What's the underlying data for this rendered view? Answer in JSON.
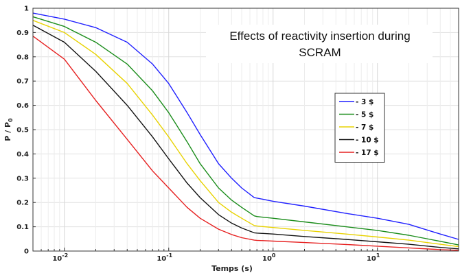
{
  "chart_data": {
    "type": "line",
    "title_lines": [
      "Effects of reactivity insertion during",
      "SCRAM"
    ],
    "xlabel": "Temps (s)",
    "ylabel": "P / P",
    "ylabel_subscript": "0",
    "x_scale": "log",
    "xlim": [
      0.005,
      60
    ],
    "ylim": [
      0,
      1
    ],
    "grid": true,
    "legend_position": "right-middle",
    "y_ticks": [
      0,
      0.1,
      0.2,
      0.3,
      0.4,
      0.5,
      0.6,
      0.7,
      0.8,
      0.9,
      1
    ],
    "y_tick_labels": [
      "0",
      "0.1",
      "0.2",
      "0.3",
      "0.4",
      "0.5",
      "0.6",
      "0.7",
      "0.8",
      "0.9",
      "1"
    ],
    "x_ticks": [
      0.01,
      0.1,
      1,
      10
    ],
    "x_tick_labels": [
      {
        "base": "10",
        "exp": "-2"
      },
      {
        "base": "10",
        "exp": "-1"
      },
      {
        "base": "10",
        "exp": "0"
      },
      {
        "base": "10",
        "exp": "1"
      }
    ],
    "series": [
      {
        "name": "- 3 $",
        "color": "#1f1fff",
        "x": [
          0.005,
          0.01,
          0.02,
          0.04,
          0.07,
          0.1,
          0.15,
          0.2,
          0.3,
          0.4,
          0.5,
          0.66,
          0.7,
          1,
          2,
          5,
          10,
          20,
          40,
          60
        ],
        "y": [
          0.98,
          0.955,
          0.92,
          0.86,
          0.77,
          0.69,
          0.57,
          0.48,
          0.36,
          0.3,
          0.26,
          0.22,
          0.218,
          0.205,
          0.185,
          0.155,
          0.135,
          0.11,
          0.07,
          0.048
        ]
      },
      {
        "name": "- 5 $",
        "color": "#1a8c1a",
        "x": [
          0.005,
          0.01,
          0.02,
          0.04,
          0.07,
          0.1,
          0.15,
          0.2,
          0.3,
          0.4,
          0.5,
          0.66,
          0.7,
          1,
          2,
          5,
          10,
          20,
          40,
          60
        ],
        "y": [
          0.965,
          0.925,
          0.86,
          0.77,
          0.66,
          0.57,
          0.45,
          0.36,
          0.26,
          0.21,
          0.18,
          0.145,
          0.142,
          0.135,
          0.12,
          0.1,
          0.085,
          0.065,
          0.04,
          0.025
        ]
      },
      {
        "name": "- 7 $",
        "color": "#e8d200",
        "x": [
          0.005,
          0.01,
          0.02,
          0.04,
          0.07,
          0.1,
          0.15,
          0.2,
          0.3,
          0.4,
          0.5,
          0.66,
          0.7,
          1,
          2,
          5,
          10,
          20,
          40,
          60
        ],
        "y": [
          0.95,
          0.9,
          0.81,
          0.69,
          0.56,
          0.47,
          0.36,
          0.29,
          0.2,
          0.16,
          0.135,
          0.105,
          0.103,
          0.097,
          0.085,
          0.07,
          0.058,
          0.045,
          0.028,
          0.018
        ]
      },
      {
        "name": "- 10 $",
        "color": "#111111",
        "x": [
          0.005,
          0.01,
          0.02,
          0.04,
          0.07,
          0.1,
          0.15,
          0.2,
          0.3,
          0.4,
          0.5,
          0.66,
          0.7,
          1,
          2,
          5,
          10,
          20,
          40,
          60
        ],
        "y": [
          0.93,
          0.86,
          0.74,
          0.6,
          0.47,
          0.38,
          0.28,
          0.22,
          0.15,
          0.115,
          0.095,
          0.075,
          0.074,
          0.07,
          0.06,
          0.048,
          0.038,
          0.028,
          0.015,
          0.009
        ]
      },
      {
        "name": "- 17 $",
        "color": "#e62020",
        "x": [
          0.005,
          0.01,
          0.02,
          0.04,
          0.07,
          0.1,
          0.15,
          0.2,
          0.3,
          0.4,
          0.5,
          0.66,
          0.7,
          1,
          2,
          5,
          10,
          20,
          40,
          60
        ],
        "y": [
          0.885,
          0.79,
          0.62,
          0.46,
          0.33,
          0.26,
          0.18,
          0.135,
          0.09,
          0.068,
          0.055,
          0.045,
          0.044,
          0.041,
          0.035,
          0.027,
          0.02,
          0.013,
          0.006,
          0.003
        ]
      }
    ]
  }
}
